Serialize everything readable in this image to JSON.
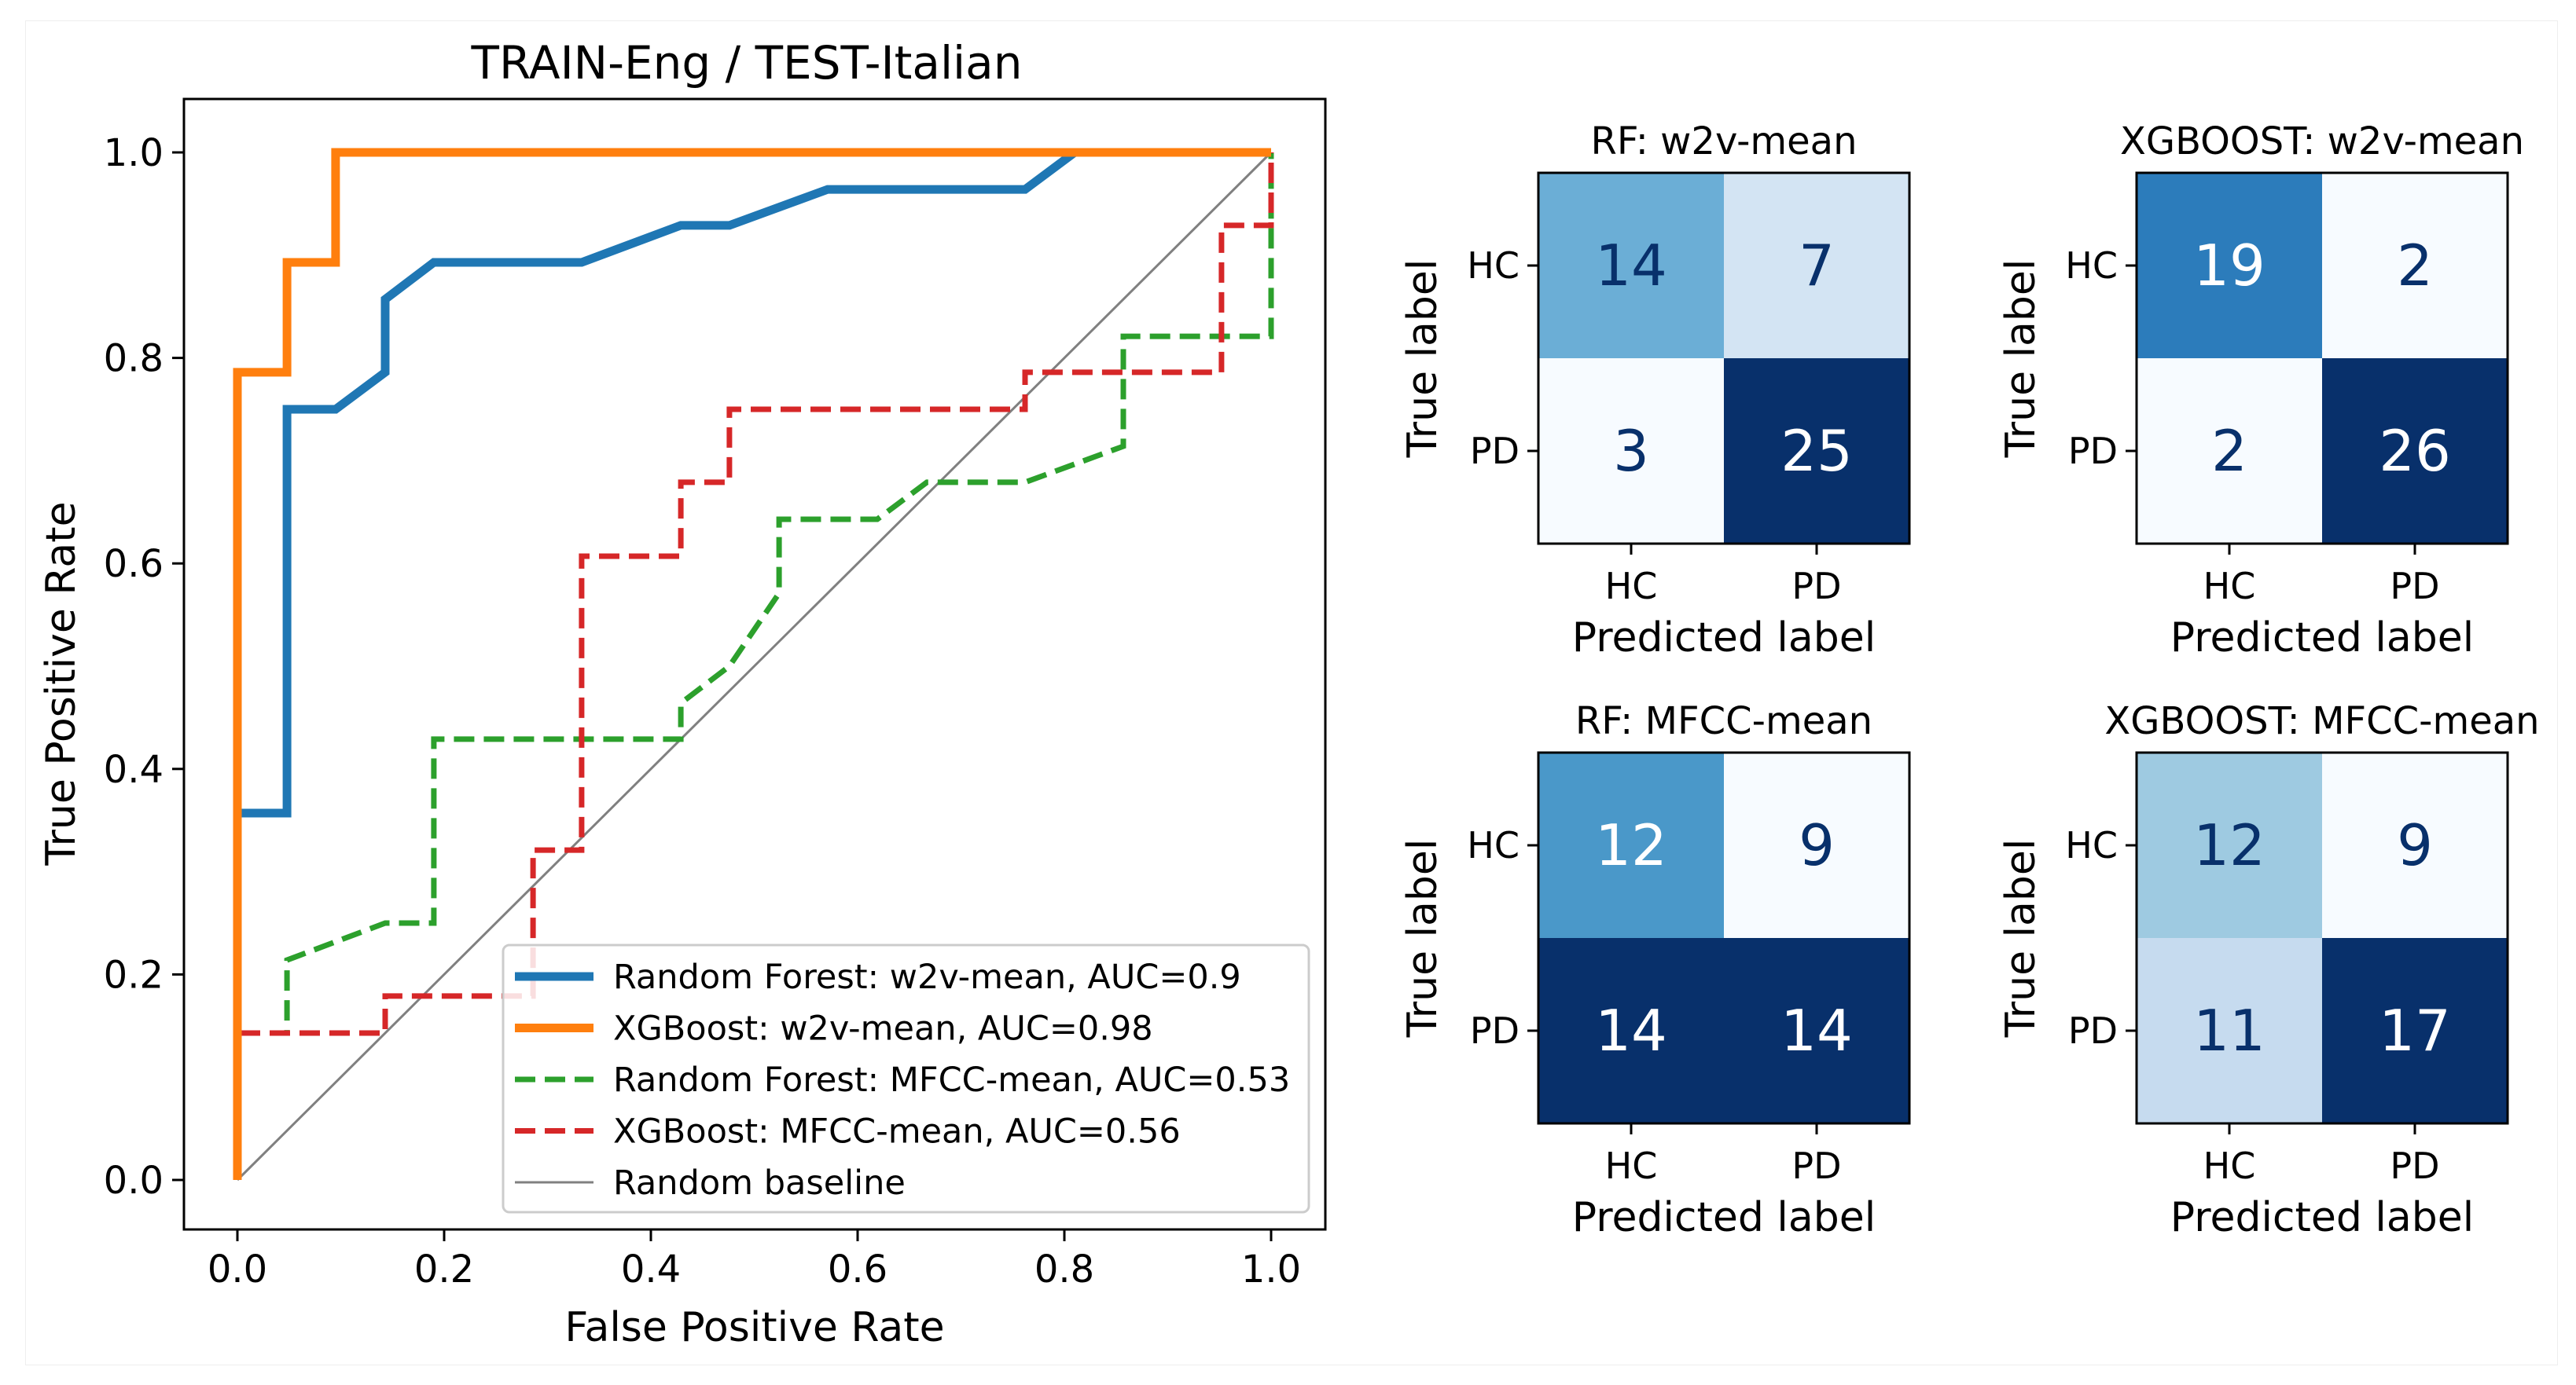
{
  "roc": {
    "title": "TRAIN-Eng / TEST-Italian",
    "xlabel": "False Positive Rate",
    "ylabel": "True Positive Rate",
    "xticks": [
      "0.0",
      "0.2",
      "0.4",
      "0.6",
      "0.8",
      "1.0"
    ],
    "yticks": [
      "0.0",
      "0.2",
      "0.4",
      "0.6",
      "0.8",
      "1.0"
    ],
    "legend": [
      "Random Forest: w2v-mean, AUC=0.9",
      "XGBoost: w2v-mean, AUC=0.98",
      "Random Forest: MFCC-mean, AUC=0.53",
      "XGBoost: MFCC-mean, AUC=0.56",
      "Random baseline"
    ]
  },
  "chart_data": [
    {
      "type": "line",
      "title": "TRAIN-Eng / TEST-Italian",
      "xlabel": "False Positive Rate",
      "ylabel": "True Positive Rate",
      "xlim": [
        0.0,
        1.0
      ],
      "ylim": [
        0.0,
        1.0
      ],
      "grid": false,
      "legend_position": "bottom-right",
      "series": [
        {
          "name": "Random Forest: w2v-mean, AUC=0.9",
          "color": "#1f77b4",
          "style": "solid",
          "x": [
            0,
            0,
            0.048,
            0.048,
            0.095,
            0.143,
            0.143,
            0.19,
            0.333,
            0.429,
            0.476,
            0.571,
            0.762,
            0.81,
            1.0
          ],
          "y": [
            0,
            0.357,
            0.357,
            0.75,
            0.75,
            0.786,
            0.857,
            0.893,
            0.893,
            0.929,
            0.929,
            0.964,
            0.964,
            1.0,
            1.0
          ]
        },
        {
          "name": "XGBoost: w2v-mean, AUC=0.98",
          "color": "#ff7f0e",
          "style": "solid",
          "x": [
            0,
            0,
            0.048,
            0.048,
            0.095,
            0.095,
            1.0
          ],
          "y": [
            0,
            0.786,
            0.786,
            0.893,
            0.893,
            1.0,
            1.0
          ]
        },
        {
          "name": "Random Forest: MFCC-mean, AUC=0.53",
          "color": "#2ca02c",
          "style": "dashed",
          "x": [
            0,
            0,
            0.048,
            0.048,
            0.143,
            0.19,
            0.19,
            0.429,
            0.429,
            0.476,
            0.524,
            0.524,
            0.619,
            0.667,
            0.762,
            0.857,
            0.857,
            0.952,
            1.0,
            1.0
          ],
          "y": [
            0,
            0.143,
            0.143,
            0.214,
            0.25,
            0.25,
            0.429,
            0.429,
            0.464,
            0.5,
            0.571,
            0.643,
            0.643,
            0.679,
            0.679,
            0.714,
            0.821,
            0.821,
            0.821,
            1.0
          ]
        },
        {
          "name": "XGBoost: MFCC-mean, AUC=0.56",
          "color": "#d62728",
          "style": "dashed",
          "x": [
            0,
            0,
            0.143,
            0.143,
            0.286,
            0.286,
            0.333,
            0.333,
            0.429,
            0.429,
            0.476,
            0.476,
            0.762,
            0.762,
            0.952,
            0.952,
            1.0,
            1.0
          ],
          "y": [
            0,
            0.143,
            0.143,
            0.179,
            0.179,
            0.321,
            0.321,
            0.607,
            0.607,
            0.679,
            0.679,
            0.75,
            0.75,
            0.786,
            0.786,
            0.929,
            0.929,
            1.0
          ]
        },
        {
          "name": "Random baseline",
          "color": "#808080",
          "style": "solid",
          "x": [
            0,
            1.0
          ],
          "y": [
            0,
            1.0
          ]
        }
      ]
    },
    {
      "type": "heatmap",
      "title": "RF: w2v-mean",
      "colormap": "Blues",
      "xlabel": "Predicted label",
      "ylabel": "True label",
      "x_categories": [
        "HC",
        "PD"
      ],
      "y_categories": [
        "HC",
        "PD"
      ],
      "values": [
        [
          14,
          7
        ],
        [
          3,
          25
        ]
      ]
    },
    {
      "type": "heatmap",
      "title": "XGBOOST: w2v-mean",
      "colormap": "Blues",
      "xlabel": "Predicted label",
      "ylabel": "True label",
      "x_categories": [
        "HC",
        "PD"
      ],
      "y_categories": [
        "HC",
        "PD"
      ],
      "values": [
        [
          19,
          2
        ],
        [
          2,
          26
        ]
      ]
    },
    {
      "type": "heatmap",
      "title": "RF: MFCC-mean",
      "colormap": "Blues",
      "xlabel": "Predicted label",
      "ylabel": "True label",
      "x_categories": [
        "HC",
        "PD"
      ],
      "y_categories": [
        "HC",
        "PD"
      ],
      "values": [
        [
          12,
          9
        ],
        [
          14,
          14
        ]
      ]
    },
    {
      "type": "heatmap",
      "title": "XGBOOST: MFCC-mean",
      "colormap": "Blues",
      "xlabel": "Predicted label",
      "ylabel": "True label",
      "x_categories": [
        "HC",
        "PD"
      ],
      "y_categories": [
        "HC",
        "PD"
      ],
      "values": [
        [
          12,
          9
        ],
        [
          11,
          17
        ]
      ]
    }
  ]
}
